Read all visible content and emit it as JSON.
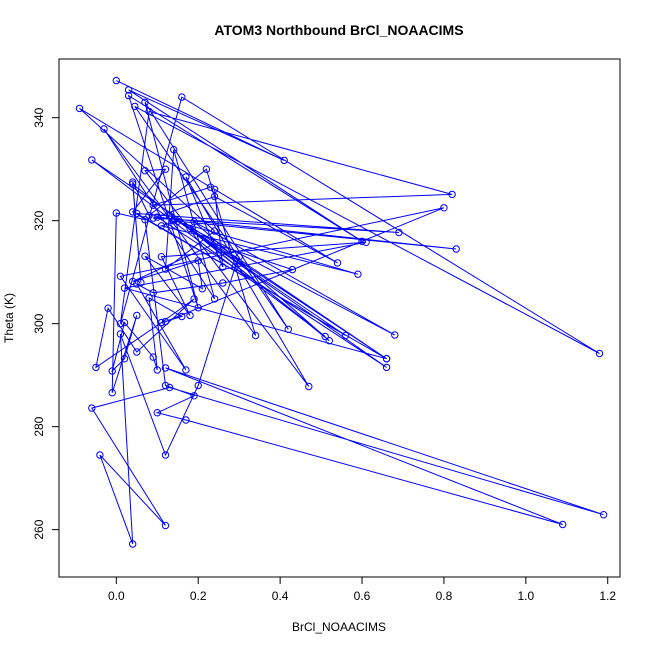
{
  "chart_data": {
    "type": "line",
    "title": "ATOM3 Northbound BrCl_NOAACIMS",
    "xlabel": "BrCl_NOAACIMS",
    "ylabel": "Theta (K)",
    "xlim": [
      -0.14,
      1.23
    ],
    "ylim": [
      250.8,
      351.4
    ],
    "x_ticks": [
      0.0,
      0.2,
      0.4,
      0.6,
      0.8,
      1.0,
      1.2
    ],
    "x_tick_labels": [
      "0.0",
      "0.2",
      "0.4",
      "0.6",
      "0.8",
      "1.0",
      "1.2"
    ],
    "y_ticks": [
      260,
      280,
      300,
      320,
      340
    ],
    "y_tick_labels": [
      "260",
      "280",
      "300",
      "320",
      "340"
    ],
    "grid": false,
    "legend": "none",
    "series": [
      {
        "color": "#0000ff",
        "points": [
          [
            0.0,
            347.2
          ],
          [
            0.41,
            331.7
          ],
          [
            0.03,
            345.4
          ],
          [
            0.6,
            316.0
          ],
          [
            0.03,
            344.3
          ],
          [
            0.2,
            303.1
          ],
          [
            0.07,
            343.0
          ],
          [
            0.42,
            298.9
          ],
          [
            0.045,
            342.2
          ],
          [
            1.18,
            294.2
          ],
          [
            0.16,
            344.0
          ],
          [
            0.01,
            300.0
          ],
          [
            0.08,
            341.2
          ],
          [
            0.82,
            325.1
          ],
          [
            0.09,
            323.0
          ],
          [
            0.23,
            326.5
          ],
          [
            -0.09,
            341.8
          ],
          [
            0.24,
            318.0
          ],
          [
            0.12,
            310.6
          ],
          [
            0.14,
            333.8
          ],
          [
            0.24,
            304.8
          ],
          [
            -0.03,
            337.8
          ],
          [
            0.34,
            297.7
          ],
          [
            0.22,
            330.0
          ],
          [
            0.08,
            321.0
          ],
          [
            0.04,
            327.5
          ],
          [
            0.06,
            308.0
          ],
          [
            0.04,
            327.1
          ],
          [
            0.51,
            297.5
          ],
          [
            -0.06,
            331.8
          ],
          [
            0.66,
            293.2
          ],
          [
            0.04,
            321.7
          ],
          [
            0.12,
            330.0
          ],
          [
            0.07,
            329.7
          ],
          [
            0.47,
            287.8
          ],
          [
            0.17,
            328.5
          ],
          [
            0.26,
            311.0
          ],
          [
            0.24,
            326.1
          ],
          [
            0.54,
            311.8
          ],
          [
            0.24,
            324.7
          ],
          [
            0.09,
            320.5
          ],
          [
            0.69,
            317.7
          ],
          [
            0.05,
            321.4
          ],
          [
            0.56,
            297.7
          ],
          [
            0.13,
            321.0
          ],
          [
            0.66,
            291.5
          ],
          [
            0.1,
            320.7
          ],
          [
            0.83,
            314.5
          ],
          [
            0.14,
            320.0
          ],
          [
            0.59,
            309.6
          ],
          [
            0.11,
            319.0
          ],
          [
            0.15,
            319.9
          ],
          [
            0.68,
            297.8
          ],
          [
            0.19,
            319.8
          ],
          [
            0.52,
            296.7
          ],
          [
            0.18,
            318.5
          ],
          [
            0.66,
            293.2
          ],
          [
            0.02,
            306.9
          ],
          [
            0.61,
            315.8
          ],
          [
            0.11,
            313.0
          ],
          [
            0.18,
            301.6
          ],
          [
            0.07,
            313.1
          ],
          [
            0.21,
            306.8
          ],
          [
            0.2,
            312.2
          ],
          [
            0.04,
            308.2
          ],
          [
            0.24,
            315.5
          ],
          [
            0.43,
            310.5
          ],
          [
            0.26,
            307.9
          ],
          [
            0.09,
            306.0
          ],
          [
            0.05,
            307.7
          ],
          [
            0.17,
            291.0
          ],
          [
            0.01,
            309.2
          ],
          [
            0.8,
            322.5
          ],
          [
            0.12,
            300.4
          ],
          [
            0.11,
            300.2
          ],
          [
            0.19,
            304.8
          ],
          [
            0.05,
            294.5
          ],
          [
            -0.02,
            303.0
          ],
          [
            -0.05,
            291.5
          ],
          [
            0.11,
            300.2
          ],
          [
            0.16,
            301.4
          ],
          [
            0.08,
            305.0
          ],
          [
            0.1,
            291.0
          ],
          [
            0.09,
            293.5
          ],
          [
            0.02,
            300.2
          ],
          [
            -0.01,
            290.8
          ],
          [
            0.02,
            293.2
          ],
          [
            0.05,
            301.6
          ],
          [
            -0.01,
            286.6
          ],
          [
            0.0,
            321.5
          ],
          [
            0.07,
            320.2
          ],
          [
            0.12,
            288.0
          ],
          [
            0.19,
            286.0
          ],
          [
            0.1,
            282.7
          ],
          [
            0.17,
            281.3
          ],
          [
            1.09,
            261.0
          ],
          [
            0.12,
            291.4
          ],
          [
            1.19,
            262.9
          ],
          [
            0.13,
            287.6
          ],
          [
            -0.06,
            283.6
          ],
          [
            0.12,
            260.8
          ],
          [
            -0.04,
            274.5
          ],
          [
            0.04,
            257.2
          ],
          [
            0.01,
            298.0
          ],
          [
            0.12,
            274.5
          ],
          [
            0.2,
            288.0
          ],
          [
            0.29,
            311.0
          ],
          [
            0.3,
            313.0
          ]
        ]
      }
    ]
  }
}
